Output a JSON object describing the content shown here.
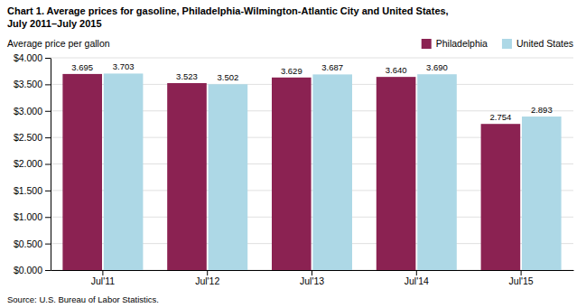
{
  "chart_data": {
    "type": "bar",
    "title": "Chart 1. Average prices for gasoline, Philadelphia-Wilmington-Atlantic City and United States,",
    "subtitle": "July 2011–July 2015",
    "ylabel": "Average price per gallon",
    "annotations": [
      "Source: U.S. Bureau of Labor Statistics."
    ],
    "categories": [
      "Jul'11",
      "Jul'12",
      "Jul'13",
      "Jul'14",
      "Jul'15"
    ],
    "series": [
      {
        "name": "Philadelphia",
        "color": "#8B2252",
        "values": [
          3.695,
          3.523,
          3.629,
          3.64,
          2.754
        ],
        "value_labels": [
          "3.695",
          "3.523",
          "3.629",
          "3.640",
          "2.754"
        ]
      },
      {
        "name": "United States",
        "color": "#ADD8E6",
        "values": [
          3.703,
          3.502,
          3.687,
          3.69,
          2.893
        ],
        "value_labels": [
          "3.703",
          "3.502",
          "3.687",
          "3.690",
          "2.893"
        ]
      }
    ],
    "ylim": [
      0,
      4.0
    ],
    "yticks": [
      {
        "value": 0.0,
        "label": "$0.000"
      },
      {
        "value": 0.5,
        "label": "$0.500"
      },
      {
        "value": 1.0,
        "label": "$1.000"
      },
      {
        "value": 1.5,
        "label": "$1.500"
      },
      {
        "value": 2.0,
        "label": "$2.000"
      },
      {
        "value": 2.5,
        "label": "$2.500"
      },
      {
        "value": 3.0,
        "label": "$3.000"
      },
      {
        "value": 3.5,
        "label": "$3.500"
      },
      {
        "value": 4.0,
        "label": "$4.000"
      }
    ],
    "grid": true,
    "legend": "upper right",
    "data_labels": true
  }
}
